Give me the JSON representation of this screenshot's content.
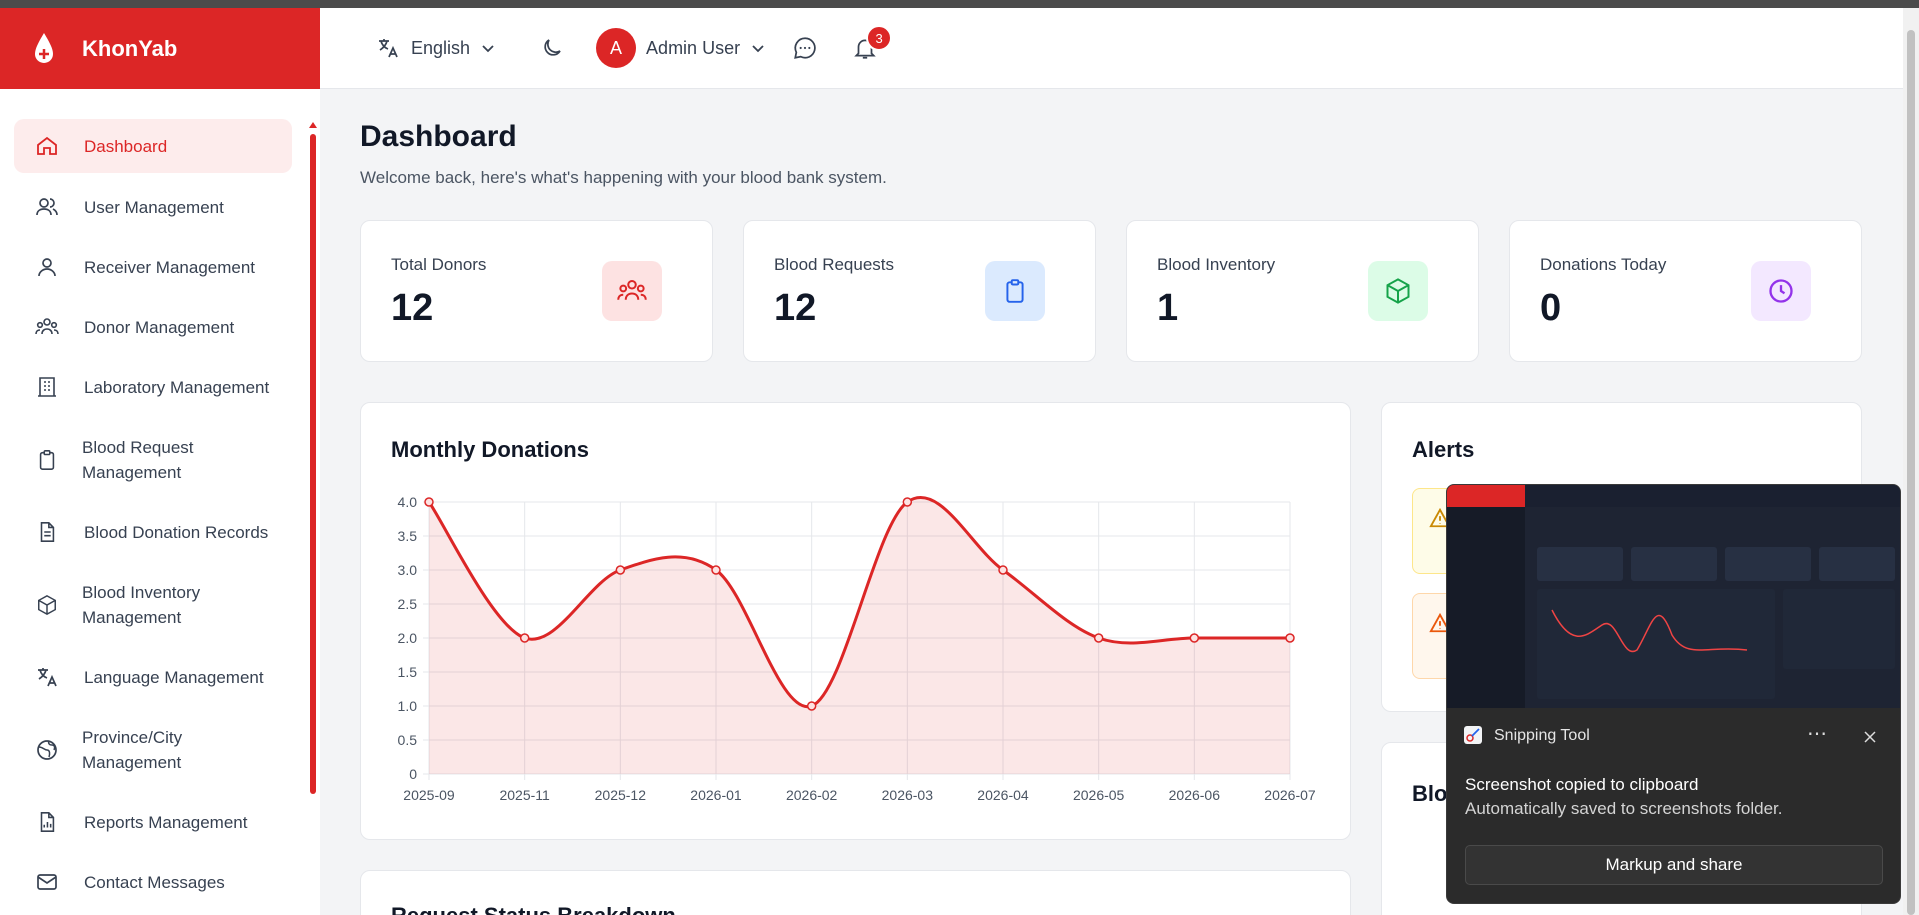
{
  "app": {
    "name": "KhonYab"
  },
  "header": {
    "language": "English",
    "user_initial": "A",
    "user_name": "Admin User",
    "notification_count": "3"
  },
  "sidebar": {
    "items": [
      {
        "label": "Dashboard",
        "icon": "home-icon"
      },
      {
        "label": "User Management",
        "icon": "users-icon"
      },
      {
        "label": "Receiver Management",
        "icon": "user-icon"
      },
      {
        "label": "Donor Management",
        "icon": "group-icon"
      },
      {
        "label": "Laboratory Management",
        "icon": "building-icon"
      },
      {
        "label": "Blood Request Management",
        "icon": "clipboard-icon"
      },
      {
        "label": "Blood Donation Records",
        "icon": "document-icon"
      },
      {
        "label": "Blood Inventory Management",
        "icon": "box-icon"
      },
      {
        "label": "Language Management",
        "icon": "translate-icon"
      },
      {
        "label": "Province/City Management",
        "icon": "globe-icon"
      },
      {
        "label": "Reports Management",
        "icon": "report-icon"
      },
      {
        "label": "Contact Messages",
        "icon": "mail-icon"
      }
    ]
  },
  "page": {
    "title": "Dashboard",
    "subtitle": "Welcome back, here's what's happening with your blood bank system."
  },
  "stats": [
    {
      "label": "Total Donors",
      "value": "12",
      "icon": "users-icon",
      "bg": "#fde2e2",
      "color": "#dc2626"
    },
    {
      "label": "Blood Requests",
      "value": "12",
      "icon": "clipboard-icon",
      "bg": "#dbeafe",
      "color": "#2563eb"
    },
    {
      "label": "Blood Inventory",
      "value": "1",
      "icon": "box-icon",
      "bg": "#dcfce7",
      "color": "#16a34a"
    },
    {
      "label": "Donations Today",
      "value": "0",
      "icon": "clock-icon",
      "bg": "#f3e8ff",
      "color": "#9333ea"
    }
  ],
  "monthly": {
    "title": "Monthly Donations"
  },
  "alerts": {
    "title": "Alerts"
  },
  "blood_type": {
    "title_partial": "Blo"
  },
  "request_status": {
    "title_partial": "Request Status Breakdown"
  },
  "chart_data": {
    "type": "area",
    "title": "Monthly Donations",
    "x": [
      "2025-09",
      "2025-11",
      "2025-12",
      "2026-01",
      "2026-02",
      "2026-03",
      "2026-04",
      "2026-05",
      "2026-06",
      "2026-07"
    ],
    "values": [
      4,
      2,
      3,
      3,
      1,
      4,
      3,
      2,
      2,
      2
    ],
    "ylim": [
      0,
      4
    ],
    "yticks": [
      "4.0",
      "3.5",
      "3.0",
      "2.5",
      "2.0",
      "1.5",
      "1.0",
      "0.5",
      "0"
    ],
    "grid": true,
    "color": "#dc2626"
  },
  "toast": {
    "tool": "Snipping Tool",
    "message": "Screenshot copied to clipboard",
    "detail": "Automatically saved to screenshots folder.",
    "button": "Markup and share"
  }
}
